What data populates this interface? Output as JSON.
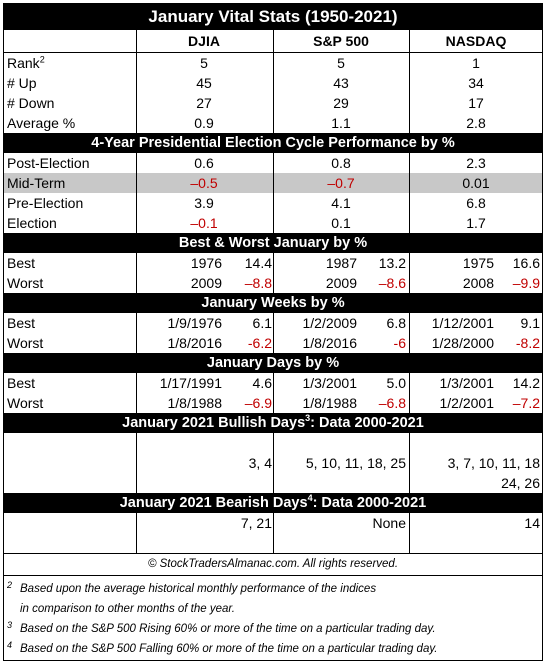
{
  "title": "January Vital Stats (1950-2021)",
  "columns": [
    "DJIA",
    "S&P 500",
    "NASDAQ"
  ],
  "vital_stats": {
    "rank": {
      "label": "Rank",
      "sup": "2",
      "values": [
        "5",
        "5",
        "1"
      ]
    },
    "up": {
      "label": "# Up",
      "values": [
        "45",
        "43",
        "34"
      ]
    },
    "down": {
      "label": "# Down",
      "values": [
        "27",
        "29",
        "17"
      ]
    },
    "average": {
      "label": "Average %",
      "values": [
        "0.9",
        "1.1",
        "2.8"
      ]
    }
  },
  "election": {
    "title": "4-Year Presidential Election Cycle Performance by %",
    "post": {
      "label": "Post-Election",
      "values": [
        "0.6",
        "0.8",
        "2.3"
      ]
    },
    "mid": {
      "label": "Mid-Term",
      "values": [
        "–0.5",
        "–0.7",
        "0.01"
      ]
    },
    "pre": {
      "label": "Pre-Election",
      "values": [
        "3.9",
        "4.1",
        "6.8"
      ]
    },
    "election": {
      "label": "Election",
      "values": [
        "–0.1",
        "0.1",
        "1.7"
      ]
    }
  },
  "best_worst": {
    "title": "Best & Worst January by %",
    "best": {
      "label": "Best",
      "djia": [
        "1976",
        "14.4"
      ],
      "sp": [
        "1987",
        "13.2"
      ],
      "nasdaq": [
        "1975",
        "16.6"
      ]
    },
    "worst": {
      "label": "Worst",
      "djia": [
        "2009",
        "–8.8"
      ],
      "sp": [
        "2009",
        "–8.6"
      ],
      "nasdaq": [
        "2008",
        "–9.9"
      ]
    }
  },
  "weeks": {
    "title": "January Weeks by %",
    "best": {
      "label": "Best",
      "djia": [
        "1/9/1976",
        "6.1"
      ],
      "sp": [
        "1/2/2009",
        "6.8"
      ],
      "nasdaq": [
        "1/12/2001",
        "9.1"
      ]
    },
    "worst": {
      "label": "Worst",
      "djia": [
        "1/8/2016",
        "-6.2"
      ],
      "sp": [
        "1/8/2016",
        "-6"
      ],
      "nasdaq": [
        "1/28/2000",
        "-8.2"
      ]
    }
  },
  "days": {
    "title": "January Days by %",
    "best": {
      "label": "Best",
      "djia": [
        "1/17/1991",
        "4.6"
      ],
      "sp": [
        "1/3/2001",
        "5.0"
      ],
      "nasdaq": [
        "1/3/2001",
        "14.2"
      ]
    },
    "worst": {
      "label": "Worst",
      "djia": [
        "1/8/1988",
        "–6.9"
      ],
      "sp": [
        "1/8/1988",
        "–6.8"
      ],
      "nasdaq": [
        "1/2/2001",
        "–7.2"
      ]
    }
  },
  "bullish": {
    "title": "January 2021 Bullish Days",
    "sup": "3",
    "suffix": ": Data 2000-2021",
    "djia": "3, 4",
    "sp": "5, 10, 11, 18, 25",
    "nasdaq_line1": "3, 7, 10, 11, 18",
    "nasdaq_line2": "24, 26"
  },
  "bearish": {
    "title": "January 2021 Bearish Days",
    "sup": "4",
    "suffix": ": Data 2000-2021",
    "djia": "7, 21",
    "sp": "None",
    "nasdaq": "14"
  },
  "copyright": "© StockTradersAlmanac.com. All rights reserved.",
  "footnotes": [
    {
      "mark": "2",
      "lines": [
        "Based upon the average historical monthly performance of the indices",
        "in comparison to other months of the year."
      ]
    },
    {
      "mark": "3",
      "lines": [
        "Based on the S&P 500 Rising 60% or more of the time on a particular trading day."
      ]
    },
    {
      "mark": "4",
      "lines": [
        "Based on the S&P 500 Falling 60% or more of the time on a particular trading day."
      ]
    }
  ]
}
